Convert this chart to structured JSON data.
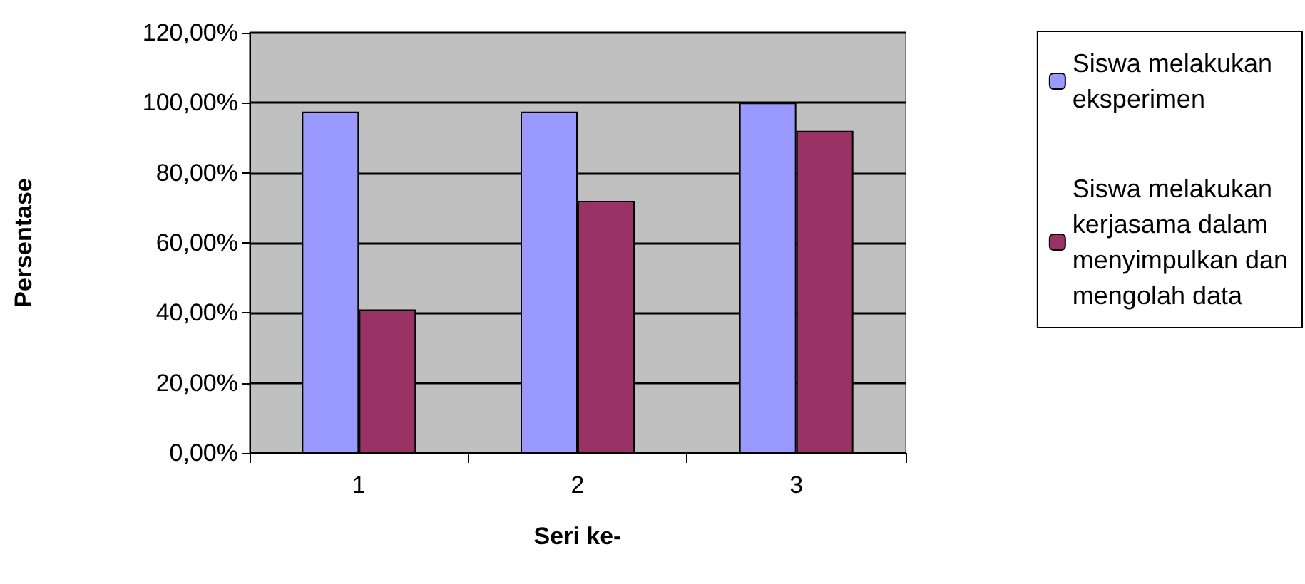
{
  "chart_data": {
    "type": "bar",
    "xlabel": "Seri ke-",
    "ylabel": "Persentase",
    "categories": [
      "1",
      "2",
      "3"
    ],
    "series": [
      {
        "name": "Siswa melakukan eksperimen",
        "color": "#9999ff",
        "values": [
          97.5,
          97.5,
          100
        ]
      },
      {
        "name": "Siswa melakukan kerjasama dalam menyimpulkan dan mengolah data",
        "color": "#993366",
        "values": [
          41,
          72,
          92
        ]
      }
    ],
    "ylim": [
      0,
      120
    ],
    "yticks": [
      {
        "value": 0,
        "label": "0,00%"
      },
      {
        "value": 20,
        "label": "20,00%"
      },
      {
        "value": 40,
        "label": "40,00%"
      },
      {
        "value": 60,
        "label": "60,00%"
      },
      {
        "value": 80,
        "label": "80,00%"
      },
      {
        "value": 100,
        "label": "100,00%"
      },
      {
        "value": 120,
        "label": "120,00%"
      }
    ],
    "grid": "y",
    "legend": "right"
  }
}
